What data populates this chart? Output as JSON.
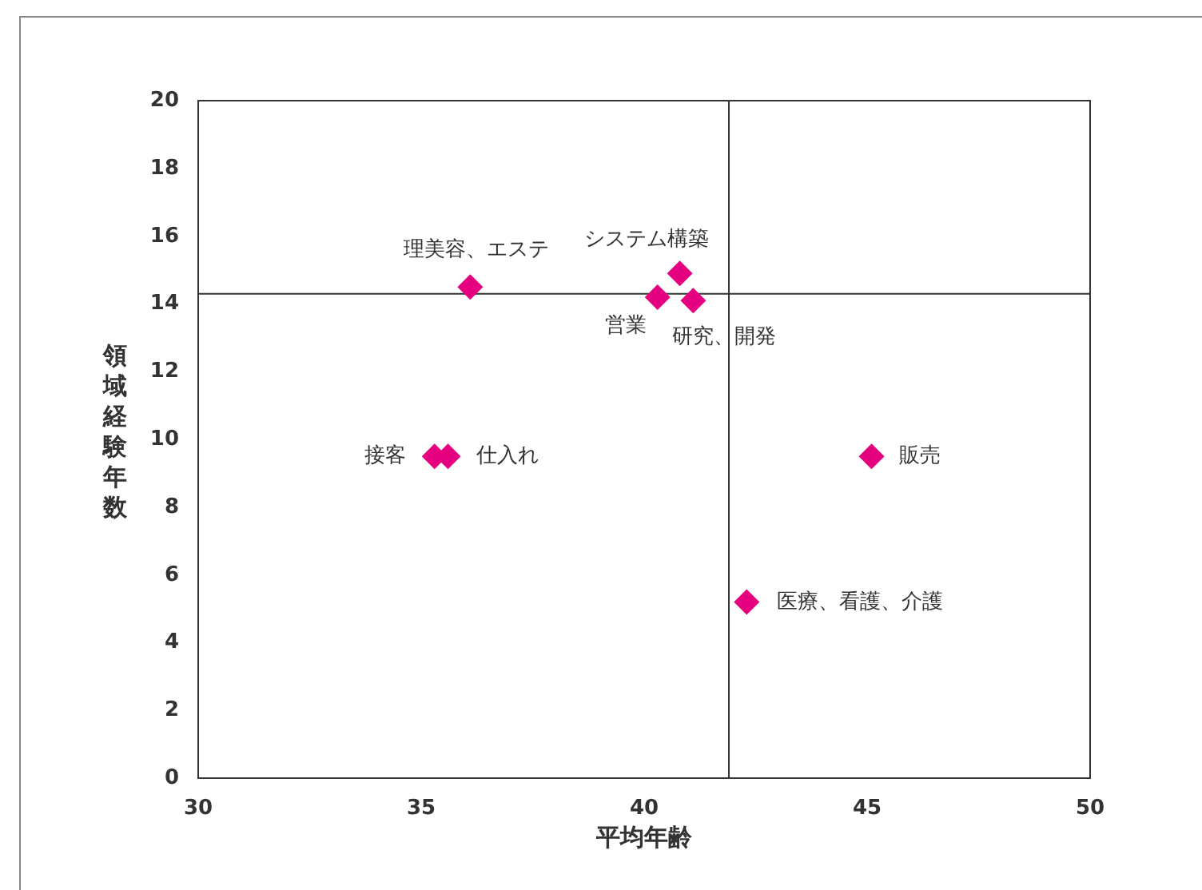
{
  "chart_data": {
    "type": "scatter",
    "xlabel": "平均年齢",
    "ylabel": "領域経験年数",
    "xlim": [
      30,
      50
    ],
    "xticks": [
      30,
      35,
      40,
      45,
      50
    ],
    "ylim": [
      0,
      20
    ],
    "yticks": [
      0,
      2,
      4,
      6,
      8,
      10,
      12,
      14,
      16,
      18,
      20
    ],
    "grid": false,
    "marker": "diamond",
    "series": [
      {
        "color": "#e5007f",
        "x": [
          36.1,
          40.8,
          40.3,
          41.1,
          35.3,
          35.6,
          45.1,
          42.3
        ],
        "values": [
          14.5,
          14.9,
          14.2,
          14.1,
          9.5,
          9.5,
          9.5,
          5.2
        ]
      }
    ],
    "ref_lines": [
      {
        "axis": "x",
        "value": 41.9,
        "color": "#333333"
      },
      {
        "axis": "y",
        "value": 14.3,
        "color": "#333333"
      }
    ],
    "annotations": [
      {
        "text": "理美容、エステ",
        "x": 36.1,
        "y": 14.5
      },
      {
        "text": "システム構築",
        "x": 40.8,
        "y": 14.9
      },
      {
        "text": "営業",
        "x": 40.3,
        "y": 14.2
      },
      {
        "text": "研究、開発",
        "x": 41.1,
        "y": 14.1
      },
      {
        "text": "接客",
        "x": 35.3,
        "y": 9.5
      },
      {
        "text": "仕入れ",
        "x": 35.6,
        "y": 9.5
      },
      {
        "text": "販売",
        "x": 45.1,
        "y": 9.5
      },
      {
        "text": "医療、看護、介護",
        "x": 42.3,
        "y": 5.2
      }
    ]
  }
}
